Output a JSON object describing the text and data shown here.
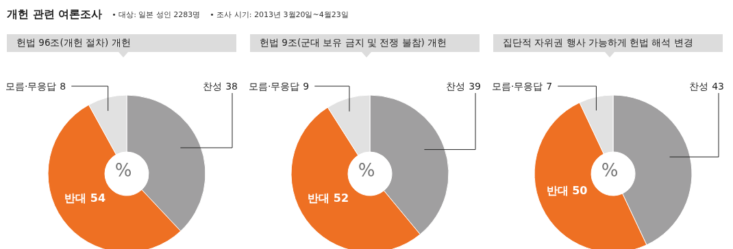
{
  "chart_data": [
    {
      "type": "other",
      "title": "개헌 관련 여론조사",
      "annotations": [
        "• 대상: 일본 성인 2283명",
        "• 조사 시기: 2013년 3월20일~4월23일"
      ]
    },
    {
      "type": "donut",
      "title": "헌법 96조(개헌 절차) 개헌",
      "categories": [
        "찬성",
        "반대",
        "모름·무응답"
      ],
      "values": [
        38,
        54,
        8
      ],
      "colors": [
        "#a09fa0",
        "#ee7023",
        "#e1e1e1"
      ],
      "data_labels": true,
      "annotations": [
        "%"
      ]
    },
    {
      "type": "donut",
      "title": "헌법 9조(군대 보유 금지 및 전쟁 불참) 개헌",
      "categories": [
        "찬성",
        "반대",
        "모름·무응답"
      ],
      "values": [
        39,
        52,
        9
      ],
      "colors": [
        "#a09fa0",
        "#ee7023",
        "#e1e1e1"
      ],
      "data_labels": true,
      "annotations": [
        "%"
      ]
    },
    {
      "type": "donut",
      "title": "집단적 자위권 행사 가능하게 헌법 해석 변경",
      "categories": [
        "찬성",
        "반대",
        "모름·무응답"
      ],
      "values": [
        43,
        50,
        7
      ],
      "colors": [
        "#a09fa0",
        "#ee7023",
        "#e1e1e1"
      ],
      "data_labels": true,
      "annotations": [
        "%"
      ]
    }
  ]
}
